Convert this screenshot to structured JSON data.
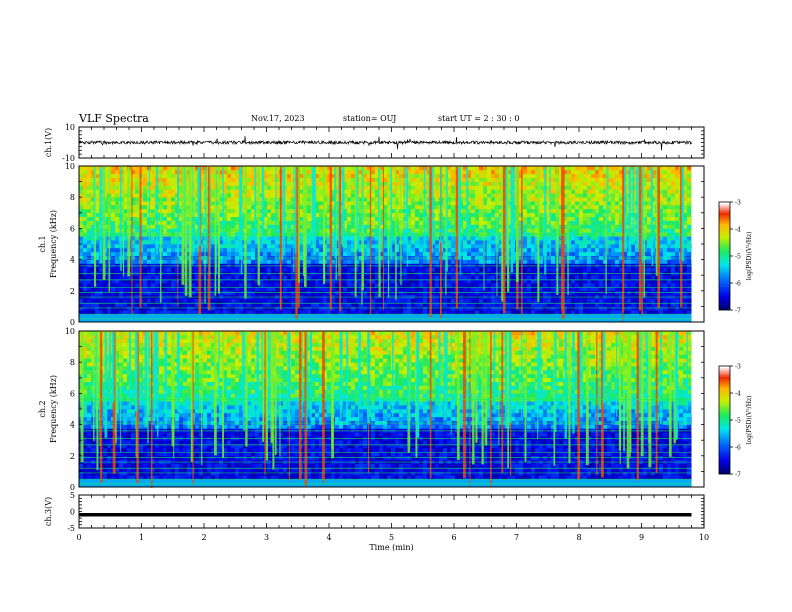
{
  "header": {
    "title": "VLF Spectra",
    "date": "Nov.17, 2023",
    "station": "station= OUJ",
    "start": "start  UT =   2  : 30 : 0"
  },
  "chart_data": [
    {
      "type": "line",
      "panel": "ch1-waveform",
      "ylabel": "ch.1(V)",
      "ylim": [
        -10,
        10
      ],
      "yticks": [
        "10",
        "-10"
      ],
      "xlim": [
        0,
        10
      ],
      "trace_level": 0,
      "trace_amplitude": 2,
      "trace_end_min": 9.8,
      "color": "#000000"
    },
    {
      "type": "heatmap",
      "panel": "ch1-spectrogram",
      "ylabel": "ch.1\nFrequency (kHz)",
      "ylim": [
        0,
        10
      ],
      "yticks": [
        "0",
        "2",
        "4",
        "6",
        "8",
        "10"
      ],
      "xlim": [
        0,
        10
      ],
      "data_end_min": 9.8,
      "colorbar": {
        "label": "log(PSD)(V²/Hz)",
        "range": [
          -7,
          -3
        ],
        "ticks": [
          "-3",
          "-4",
          "-5",
          "-6",
          "-7"
        ]
      },
      "profile": "ch1"
    },
    {
      "type": "heatmap",
      "panel": "ch2-spectrogram",
      "ylabel": "ch.2\nFrequency (kHz)",
      "ylim": [
        0,
        10
      ],
      "yticks": [
        "0",
        "2",
        "4",
        "6",
        "8",
        "10"
      ],
      "xlim": [
        0,
        10
      ],
      "data_end_min": 9.8,
      "colorbar": {
        "label": "log(PSD)(V²/Hz)",
        "range": [
          -7,
          -3
        ],
        "ticks": [
          "-3",
          "-4",
          "-5",
          "-6",
          "-7"
        ]
      },
      "profile": "ch2"
    },
    {
      "type": "line",
      "panel": "ch3-waveform",
      "ylabel": "ch.3(V)",
      "ylim": [
        -5,
        5
      ],
      "yticks": [
        "5",
        "0",
        "-5"
      ],
      "xlim": [
        0,
        10
      ],
      "trace_level": -1,
      "trace_end_min": 9.8,
      "color": "#000000",
      "xlabel": "Time  (min)",
      "xticks": [
        "0",
        "1",
        "2",
        "3",
        "4",
        "5",
        "6",
        "7",
        "8",
        "9",
        "10"
      ]
    }
  ]
}
